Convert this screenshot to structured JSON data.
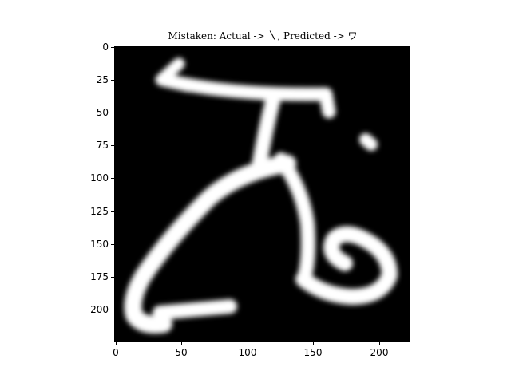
{
  "title": "Mistaken: Actual -> 〵, Predicted -> ワ",
  "image": {
    "description": "grayscale 224x224 handwritten character image, white strokes on black background",
    "colors": {
      "background": "#000000",
      "stroke": "#ffffff"
    }
  },
  "axes": {
    "x_ticks": [
      "0",
      "50",
      "100",
      "150",
      "200"
    ],
    "y_ticks": [
      "0",
      "25",
      "50",
      "75",
      "100",
      "125",
      "150",
      "175",
      "200"
    ],
    "x_tick_values": [
      0,
      50,
      100,
      150,
      200
    ],
    "y_tick_values": [
      0,
      25,
      50,
      75,
      100,
      125,
      150,
      175,
      200
    ],
    "xlim": [
      0,
      224
    ],
    "ylim": [
      224,
      0
    ]
  }
}
